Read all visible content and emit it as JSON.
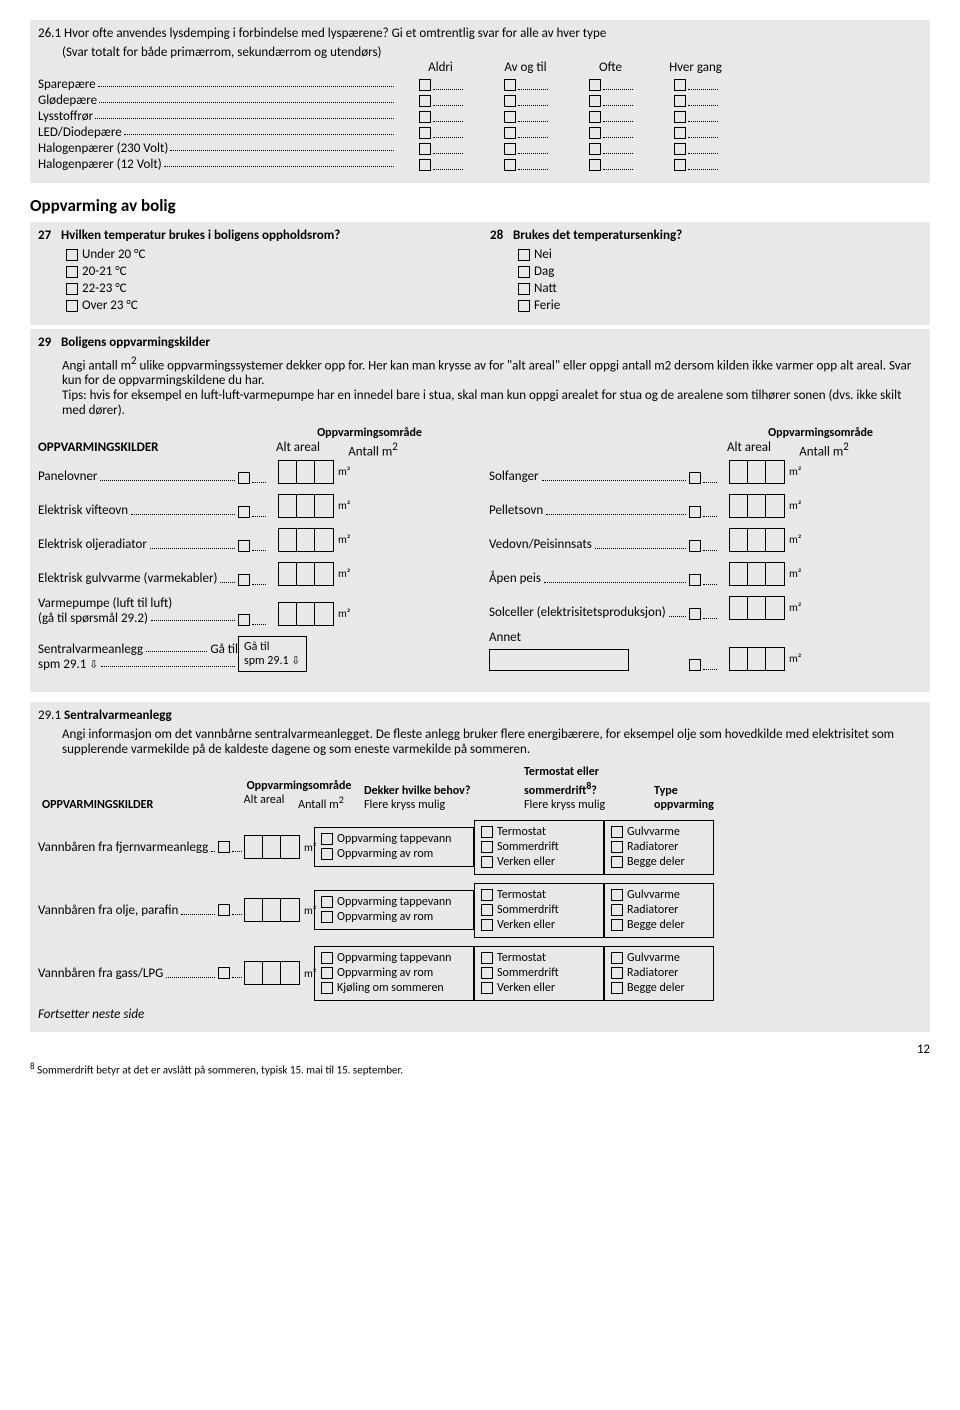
{
  "q26_1": {
    "title_num": "26.1",
    "title_text": "Hvor ofte anvendes lysdemping i forbindelse med lyspærene? Gi et omtrentlig svar for alle av hver type",
    "subtitle": "(Svar totalt for både primærrom, sekundærrom og utendørs)",
    "cols": [
      "Aldri",
      "Av og til",
      "Ofte",
      "Hver gang"
    ],
    "rows": [
      "Sparepære",
      "Glødepære",
      "Lysstoffrør",
      "LED/Diodepære",
      "Halogenpærer (230 Volt)",
      "Halogenpærer (12 Volt)"
    ]
  },
  "heating_heading": "Oppvarming av bolig",
  "q27": {
    "num": "27",
    "title": "Hvilken temperatur brukes i boligens oppholdsrom?",
    "opts": [
      "Under 20 °C",
      "20-21 °C",
      "22-23 °C",
      "Over 23 °C"
    ]
  },
  "q28": {
    "num": "28",
    "title": "Brukes det temperatursenking?",
    "opts": [
      "Nei",
      "Dag",
      "Natt",
      "Ferie"
    ]
  },
  "q29": {
    "num": "29",
    "title": "Boligens oppvarmingskilder",
    "desc1": "Angi antall m",
    "desc1b": " ulike oppvarmingssystemer dekker opp for. Her kan man krysse av for \"alt areal\" eller oppgi antall m2 dersom kilden ikke varmer opp alt areal. Svar kun for de oppvarmingskildene du har.",
    "desc2": "Tips: hvis for eksempel en luft-luft-varmepumpe har en innedel bare i stua, skal man kun oppgi arealet for stua og de arealene som tilhører sonen (dvs. ikke skilt med dører).",
    "area_head": "Oppvarmingsområde",
    "col_src": "OPPVARMINGSKILDER",
    "col_alt": "Alt areal",
    "col_ant": "Antall m",
    "left": [
      {
        "label": "Panelovner"
      },
      {
        "label": "Elektrisk vifteovn"
      },
      {
        "label": "Elektrisk oljeradiator"
      },
      {
        "label": "Elektrisk gulvvarme (varmekabler)"
      },
      {
        "label": "Varmepumpe (luft til luft)",
        "sub": "(gå til spørsmål 29.2)"
      },
      {
        "label": "Sentralvarmeanlegg",
        "suffix": " Gå til",
        "sub2": "spm 29.1 ",
        "arrow": "⇩",
        "gatil": "Gå til\nspm 29.1 ⇩"
      }
    ],
    "right": [
      {
        "label": "Solfanger"
      },
      {
        "label": "Pelletsovn"
      },
      {
        "label": "Vedovn/Peisinnsats"
      },
      {
        "label": "Åpen peis"
      },
      {
        "label": "Solceller (elektrisitetsproduksjon)"
      },
      {
        "label": "Annet",
        "annet": true
      }
    ]
  },
  "q29_1": {
    "title_num": "29.1",
    "title": "Sentralvarmeanlegg",
    "desc": "Angi informasjon om det vannbårne sentralvarmeanlegget. De fleste anlegg bruker flere energibærere, for eksempel olje som hovedkilde med elektrisitet som supplerende varmekilde på de kaldeste dagene og som eneste varmekilde på sommeren.",
    "col_src": "OPPVARMINGSKILDER",
    "col_area_head": "Oppvarmingsområde",
    "col_alt": "Alt areal",
    "col_ant": "Antall m",
    "col_need_head": "Dekker hvilke behov?",
    "col_need_sub": "Flere kryss mulig",
    "col_th_head1": "Termostat eller",
    "col_th_head2": "sommerdrift",
    "col_th_sup": "8",
    "col_th_head3": "?",
    "col_th_sub": "Flere kryss mulig",
    "col_type_head": "Type",
    "col_type_sub": "oppvarming",
    "rows": [
      {
        "label": "Vannbåren fra fjernvarmeanlegg",
        "need": [
          "Oppvarming tappevann",
          "Oppvarming av rom"
        ],
        "th": [
          "Termostat",
          "Sommerdrift",
          "Verken eller"
        ],
        "type": [
          "Gulvvarme",
          "Radiatorer",
          "Begge deler"
        ]
      },
      {
        "label": "Vannbåren fra olje, parafin",
        "need": [
          "Oppvarming tappevann",
          "Oppvarming av rom"
        ],
        "th": [
          "Termostat",
          "Sommerdrift",
          "Verken eller"
        ],
        "type": [
          "Gulvvarme",
          "Radiatorer",
          "Begge deler"
        ]
      },
      {
        "label": "Vannbåren fra gass/LPG",
        "need": [
          "Oppvarming tappevann",
          "Oppvarming av rom",
          "Kjøling om sommeren"
        ],
        "th": [
          "Termostat",
          "Sommerdrift",
          "Verken eller"
        ],
        "type": [
          "Gulvvarme",
          "Radiatorer",
          "Begge deler"
        ]
      }
    ],
    "continue": "Fortsetter neste side"
  },
  "page_num": "12",
  "footnote_num": "8",
  "footnote": " Sommerdrift betyr at det er avslått på sommeren, typisk 15. mai til 15. september."
}
